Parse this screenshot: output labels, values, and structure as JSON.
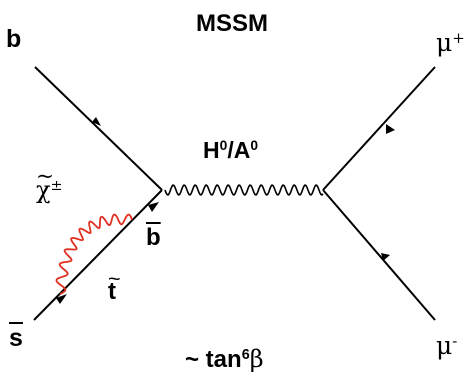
{
  "title": "MSSM",
  "particles": {
    "b": "b",
    "mu_plus": "μ",
    "mu_plus_sup": "+",
    "mu_minus": "μ",
    "mu_minus_sup": "-",
    "s_bar": "s",
    "higgs_1": "H",
    "higgs_1_sup": "0",
    "higgs_sep": "/A",
    "higgs_2_sup": "0",
    "chargino": "χ",
    "chargino_sup": "±",
    "b_bar": "b",
    "stop": "t"
  },
  "scaling": {
    "prefix": "~ tan",
    "exponent": "6",
    "symbol": "β"
  },
  "colors": {
    "lines": "#000000",
    "loop": "#e03020"
  }
}
